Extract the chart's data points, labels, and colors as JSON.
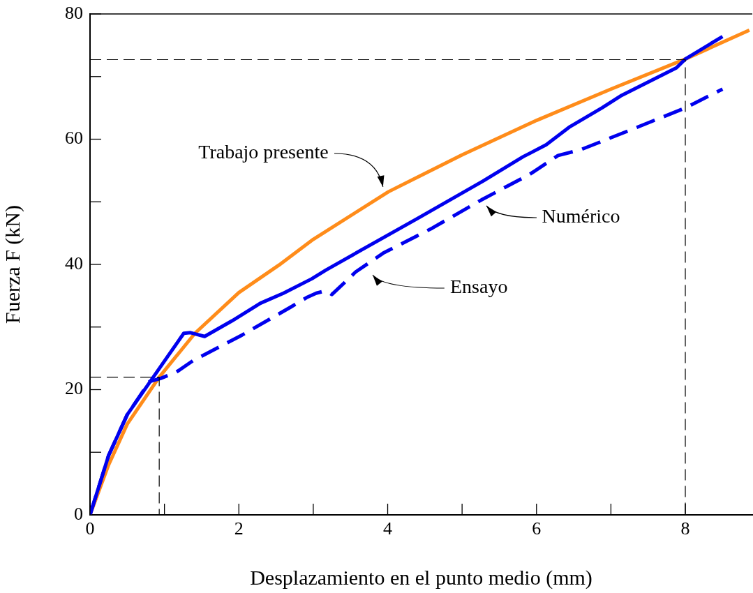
{
  "chart_data": {
    "type": "line",
    "xlabel": "Desplazamiento en el punto medio (mm)",
    "ylabel": "Fuerza F (kN)",
    "xlim": [
      0,
      8.9
    ],
    "ylim": [
      0,
      80
    ],
    "xticks": [
      0,
      {
        "value": 1,
        "label": null
      },
      2,
      {
        "value": 3,
        "label": null
      },
      4,
      {
        "value": 5,
        "label": null
      },
      6,
      {
        "value": 7,
        "label": null
      },
      8
    ],
    "yticks": [
      0,
      {
        "value": 10,
        "label": null
      },
      20,
      {
        "value": 30,
        "label": null
      },
      40,
      {
        "value": 50,
        "label": null
      },
      60,
      {
        "value": 70,
        "label": null
      },
      80
    ],
    "grid": false,
    "legend": false,
    "marker": "none",
    "series": [
      {
        "color": "#000000",
        "line_style": "dashed",
        "x": [
          0,
          8,
          8
        ],
        "values": [
          72.7,
          72.7,
          0
        ]
      },
      {
        "color": "#000000",
        "line_style": "dashed",
        "x": [
          0,
          0.93,
          0.93
        ],
        "values": [
          22,
          22,
          0
        ]
      },
      {
        "color": "#0000ee",
        "line_style": "dashed",
        "x": [
          0,
          0.25,
          0.5,
          0.8,
          0.95,
          1.16,
          1.38,
          2.04,
          2.7,
          2.91,
          3.04,
          3.17,
          3.25,
          3.35,
          3.57,
          3.94,
          4.6,
          5.26,
          5.91,
          6.29,
          6.59,
          7.29,
          8,
          8.5
        ],
        "values": [
          0,
          9.5,
          16,
          21.3,
          21.8,
          22.8,
          24.6,
          28.7,
          33.2,
          34.7,
          35.4,
          35.8,
          35.2,
          36.3,
          38.8,
          41.8,
          45.8,
          50.3,
          54.4,
          57.4,
          58.3,
          61.6,
          65,
          68
        ]
      },
      {
        "color": "#0000ee",
        "line_style": "solid",
        "x": [
          0,
          0.25,
          0.5,
          0.85,
          1.26,
          1.35,
          1.54,
          1.91,
          2.29,
          2.6,
          2.98,
          3.17,
          4.41,
          5.28,
          5.82,
          6.13,
          6.45,
          6.88,
          7.13,
          7.88,
          8,
          8.5
        ],
        "values": [
          0,
          9.5,
          16,
          22,
          29,
          29.1,
          28.5,
          31,
          33.8,
          35.4,
          37.7,
          39.1,
          47.4,
          53.3,
          57.2,
          59.1,
          62,
          65,
          66.9,
          71.4,
          72.8,
          76.4
        ]
      },
      {
        "color": "#ff8c1a",
        "line_style": "solid",
        "x": [
          0,
          0.25,
          0.5,
          0.93,
          1.41,
          2,
          2.54,
          3,
          4.01,
          5,
          6,
          7,
          8,
          8.86
        ],
        "values": [
          0,
          8,
          14.5,
          22,
          29,
          35.5,
          39.9,
          44,
          51.6,
          57.5,
          63,
          68,
          72.8,
          77.4
        ]
      }
    ],
    "annotations": [
      "Trabajo presente",
      "Numérico",
      "Ensayo"
    ]
  }
}
